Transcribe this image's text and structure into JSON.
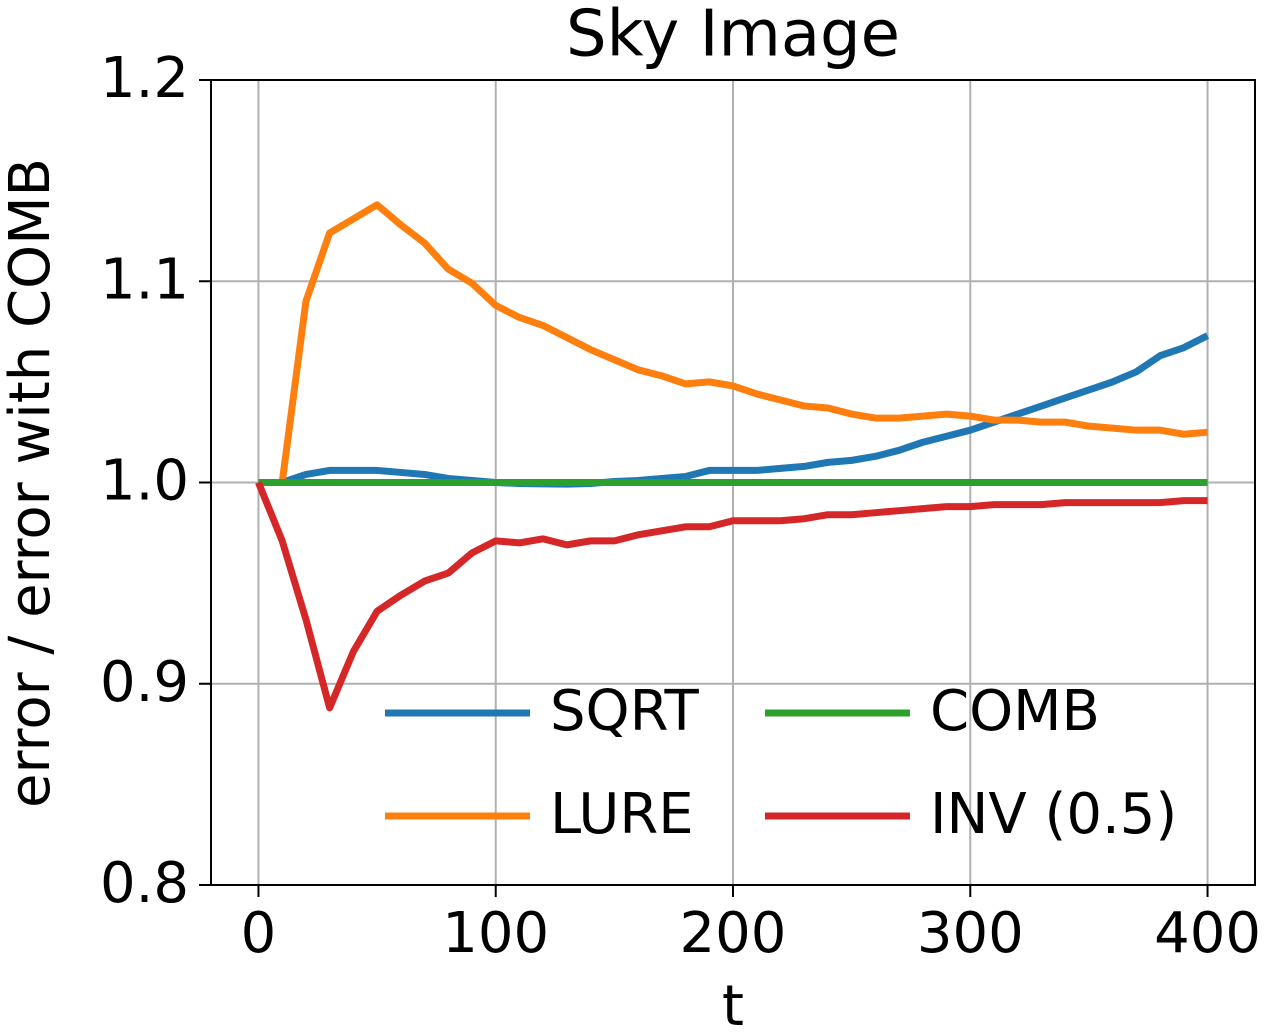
{
  "chart_data": {
    "type": "line",
    "title": "Sky Image",
    "xlabel": "t",
    "ylabel": "error / error with COMB",
    "x": [
      0,
      10,
      20,
      30,
      40,
      50,
      60,
      70,
      80,
      90,
      100,
      110,
      120,
      130,
      140,
      150,
      160,
      170,
      180,
      190,
      200,
      210,
      220,
      230,
      240,
      250,
      260,
      270,
      280,
      290,
      300,
      310,
      320,
      330,
      340,
      350,
      360,
      370,
      380,
      390,
      400
    ],
    "series": [
      {
        "name": "SQRT",
        "color": "#1f77b4",
        "values": [
          1.0,
          1.0,
          1.004,
          1.006,
          1.006,
          1.006,
          1.005,
          1.004,
          1.002,
          1.001,
          1.0,
          0.9995,
          0.9993,
          0.9992,
          0.9995,
          1.0005,
          1.001,
          1.002,
          1.003,
          1.006,
          1.006,
          1.006,
          1.007,
          1.008,
          1.01,
          1.011,
          1.013,
          1.016,
          1.02,
          1.023,
          1.026,
          1.03,
          1.034,
          1.038,
          1.042,
          1.046,
          1.05,
          1.055,
          1.063,
          1.067,
          1.073
        ]
      },
      {
        "name": "LURE",
        "color": "#ff7f0e",
        "values": [
          1.0,
          1.0,
          1.09,
          1.124,
          1.131,
          1.138,
          1.128,
          1.119,
          1.106,
          1.099,
          1.088,
          1.082,
          1.078,
          1.072,
          1.066,
          1.061,
          1.056,
          1.053,
          1.049,
          1.05,
          1.048,
          1.044,
          1.041,
          1.038,
          1.037,
          1.034,
          1.032,
          1.032,
          1.033,
          1.034,
          1.033,
          1.031,
          1.031,
          1.03,
          1.03,
          1.028,
          1.027,
          1.026,
          1.026,
          1.024,
          1.025
        ]
      },
      {
        "name": "COMB",
        "color": "#2ca02c",
        "values": [
          1,
          1,
          1,
          1,
          1,
          1,
          1,
          1,
          1,
          1,
          1,
          1,
          1,
          1,
          1,
          1,
          1,
          1,
          1,
          1,
          1,
          1,
          1,
          1,
          1,
          1,
          1,
          1,
          1,
          1,
          1,
          1,
          1,
          1,
          1,
          1,
          1,
          1,
          1,
          1,
          1
        ]
      },
      {
        "name": "INV (0.5)",
        "color": "#d62728",
        "values": [
          1.0,
          0.971,
          0.932,
          0.888,
          0.916,
          0.936,
          0.944,
          0.951,
          0.955,
          0.965,
          0.971,
          0.97,
          0.972,
          0.969,
          0.971,
          0.971,
          0.974,
          0.976,
          0.978,
          0.978,
          0.981,
          0.981,
          0.981,
          0.982,
          0.984,
          0.984,
          0.985,
          0.986,
          0.987,
          0.988,
          0.988,
          0.989,
          0.989,
          0.989,
          0.99,
          0.99,
          0.99,
          0.99,
          0.99,
          0.991,
          0.991
        ]
      }
    ],
    "xlim": [
      -20,
      420
    ],
    "ylim": [
      0.8,
      1.2
    ],
    "xticks": [
      0,
      100,
      200,
      300,
      400
    ],
    "yticks": [
      0.8,
      0.9,
      {
        "value": 1,
        "label": "1.0"
      },
      1.1,
      1.2
    ],
    "grid": true,
    "legend": "lower right"
  }
}
